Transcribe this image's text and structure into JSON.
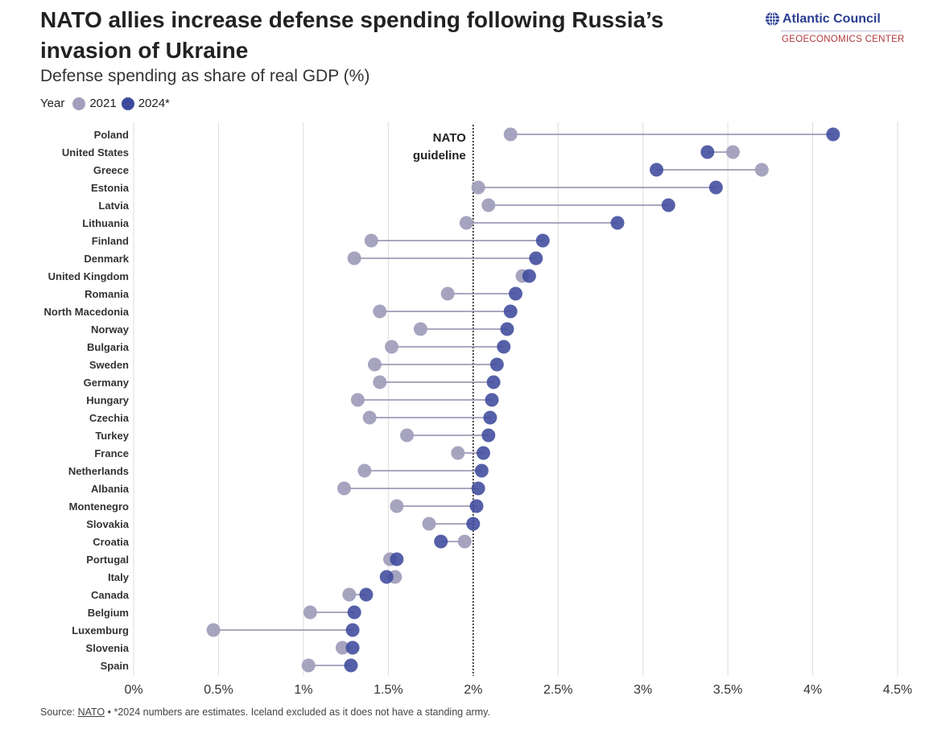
{
  "header": {
    "title": "NATO allies increase defense spending following Russia’s invasion of Ukraine",
    "subtitle": "Defense spending as share of real GDP (%)"
  },
  "legend": {
    "title": "Year",
    "items": [
      {
        "label": "2021",
        "color": "#a19fbc"
      },
      {
        "label": "2024*",
        "color": "#3d4a9c"
      }
    ]
  },
  "brand": {
    "name": "Atlantic Council",
    "unit": "GEOECONOMICS CENTER",
    "icon": "globe-icon"
  },
  "footer": {
    "source_label": "Source:",
    "source_name": "NATO",
    "note": "• *2024 numbers are estimates. Iceland excluded as it does not have a standing army."
  },
  "chart_data": {
    "type": "dumbbell",
    "xlim": [
      0,
      4.5
    ],
    "x_ticks": [
      {
        "value": 0,
        "label": "0%"
      },
      {
        "value": 0.5,
        "label": "0.5%"
      },
      {
        "value": 1,
        "label": "1%"
      },
      {
        "value": 1.5,
        "label": "1.5%"
      },
      {
        "value": 2,
        "label": "2%"
      },
      {
        "value": 2.5,
        "label": "2.5%"
      },
      {
        "value": 3,
        "label": "3%"
      },
      {
        "value": 3.5,
        "label": "3.5%"
      },
      {
        "value": 4,
        "label": "4%"
      },
      {
        "value": 4.5,
        "label": "4.5%"
      }
    ],
    "grid": true,
    "reference_line": {
      "value": 2,
      "label_lines": [
        "NATO",
        "guideline"
      ]
    },
    "categories": [
      "Poland",
      "United States",
      "Greece",
      "Estonia",
      "Latvia",
      "Lithuania",
      "Finland",
      "Denmark",
      "United Kingdom",
      "Romania",
      "North Macedonia",
      "Norway",
      "Bulgaria",
      "Sweden",
      "Germany",
      "Hungary",
      "Czechia",
      "Turkey",
      "France",
      "Netherlands",
      "Albania",
      "Montenegro",
      "Slovakia",
      "Croatia",
      "Portugal",
      "Italy",
      "Canada",
      "Belgium",
      "Luxemburg",
      "Slovenia",
      "Spain"
    ],
    "series": [
      {
        "name": "2021",
        "color": "#a19fbc",
        "values": [
          2.22,
          3.53,
          3.7,
          2.03,
          2.09,
          1.96,
          1.4,
          1.3,
          2.29,
          1.85,
          1.45,
          1.69,
          1.52,
          1.42,
          1.45,
          1.32,
          1.39,
          1.61,
          1.91,
          1.36,
          1.24,
          1.55,
          1.74,
          1.95,
          1.51,
          1.54,
          1.27,
          1.04,
          0.47,
          1.23,
          1.03
        ]
      },
      {
        "name": "2024*",
        "color": "#3d4a9c",
        "values": [
          4.12,
          3.38,
          3.08,
          3.43,
          3.15,
          2.85,
          2.41,
          2.37,
          2.33,
          2.25,
          2.22,
          2.2,
          2.18,
          2.14,
          2.12,
          2.11,
          2.1,
          2.09,
          2.06,
          2.05,
          2.03,
          2.02,
          2.0,
          1.81,
          1.55,
          1.49,
          1.37,
          1.3,
          1.29,
          1.29,
          1.28
        ]
      }
    ]
  }
}
